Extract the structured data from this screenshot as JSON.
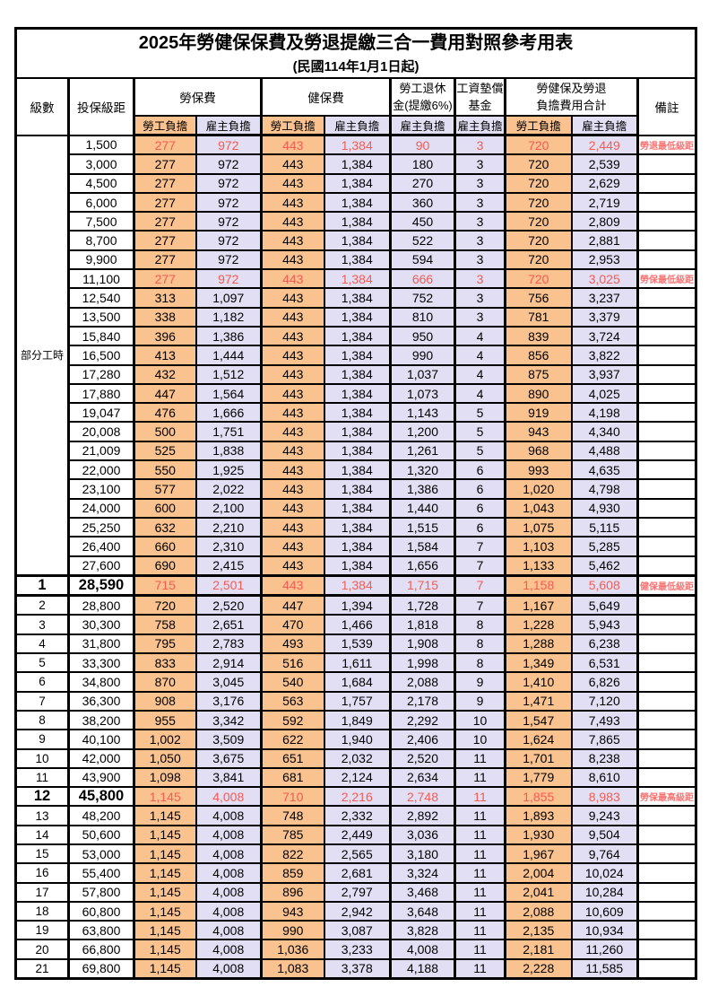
{
  "title": "2025年勞健保保費及勞退提繳三合一費用對照參考用表",
  "subtitle": "(民國114年1月1日起)",
  "header": {
    "level": "級數",
    "bracket": "投保級距",
    "labor_ins": "勞保費",
    "health_ins": "健保費",
    "pension_line1": "勞工退休",
    "pension_line2": "金(提繳6%)",
    "fund_line1": "工資墊償",
    "fund_line2": "基金",
    "total_line1": "勞健保及勞退",
    "total_line2": "負擔費用合計",
    "remark": "備註",
    "worker": "勞工負擔",
    "employer": "雇主負擔"
  },
  "part_time_label": "部分工時",
  "part_time_rowspan": 23,
  "colors": {
    "worker_fill": "#f9c28f",
    "employer_fill": "#e2dff4",
    "highlight_value_text": "#f45b52",
    "remark_text": "#f87474",
    "border": "#000000"
  },
  "rows": [
    {
      "level": "",
      "bracket": "1,500",
      "values": [
        "277",
        "972",
        "443",
        "1,384",
        "90",
        "3",
        "720",
        "2,449"
      ],
      "remark": "勞退最低級距",
      "red": true,
      "big": false,
      "thick": false
    },
    {
      "level": "",
      "bracket": "3,000",
      "values": [
        "277",
        "972",
        "443",
        "1,384",
        "180",
        "3",
        "720",
        "2,539"
      ],
      "remark": "",
      "red": false,
      "big": false,
      "thick": false
    },
    {
      "level": "",
      "bracket": "4,500",
      "values": [
        "277",
        "972",
        "443",
        "1,384",
        "270",
        "3",
        "720",
        "2,629"
      ],
      "remark": "",
      "red": false,
      "big": false,
      "thick": false
    },
    {
      "level": "",
      "bracket": "6,000",
      "values": [
        "277",
        "972",
        "443",
        "1,384",
        "360",
        "3",
        "720",
        "2,719"
      ],
      "remark": "",
      "red": false,
      "big": false,
      "thick": false
    },
    {
      "level": "",
      "bracket": "7,500",
      "values": [
        "277",
        "972",
        "443",
        "1,384",
        "450",
        "3",
        "720",
        "2,809"
      ],
      "remark": "",
      "red": false,
      "big": false,
      "thick": false
    },
    {
      "level": "",
      "bracket": "8,700",
      "values": [
        "277",
        "972",
        "443",
        "1,384",
        "522",
        "3",
        "720",
        "2,881"
      ],
      "remark": "",
      "red": false,
      "big": false,
      "thick": false
    },
    {
      "level": "",
      "bracket": "9,900",
      "values": [
        "277",
        "972",
        "443",
        "1,384",
        "594",
        "3",
        "720",
        "2,953"
      ],
      "remark": "",
      "red": false,
      "big": false,
      "thick": false
    },
    {
      "level": "",
      "bracket": "11,100",
      "values": [
        "277",
        "972",
        "443",
        "1,384",
        "666",
        "3",
        "720",
        "3,025"
      ],
      "remark": "勞保最低級距",
      "red": true,
      "big": false,
      "thick": false
    },
    {
      "level": "",
      "bracket": "12,540",
      "values": [
        "313",
        "1,097",
        "443",
        "1,384",
        "752",
        "3",
        "756",
        "3,237"
      ],
      "remark": "",
      "red": false,
      "big": false,
      "thick": false
    },
    {
      "level": "",
      "bracket": "13,500",
      "values": [
        "338",
        "1,182",
        "443",
        "1,384",
        "810",
        "3",
        "781",
        "3,379"
      ],
      "remark": "",
      "red": false,
      "big": false,
      "thick": false
    },
    {
      "level": "",
      "bracket": "15,840",
      "values": [
        "396",
        "1,386",
        "443",
        "1,384",
        "950",
        "4",
        "839",
        "3,724"
      ],
      "remark": "",
      "red": false,
      "big": false,
      "thick": false
    },
    {
      "level": "",
      "bracket": "16,500",
      "values": [
        "413",
        "1,444",
        "443",
        "1,384",
        "990",
        "4",
        "856",
        "3,822"
      ],
      "remark": "",
      "red": false,
      "big": false,
      "thick": false
    },
    {
      "level": "",
      "bracket": "17,280",
      "values": [
        "432",
        "1,512",
        "443",
        "1,384",
        "1,037",
        "4",
        "875",
        "3,937"
      ],
      "remark": "",
      "red": false,
      "big": false,
      "thick": false
    },
    {
      "level": "",
      "bracket": "17,880",
      "values": [
        "447",
        "1,564",
        "443",
        "1,384",
        "1,073",
        "4",
        "890",
        "4,025"
      ],
      "remark": "",
      "red": false,
      "big": false,
      "thick": false
    },
    {
      "level": "",
      "bracket": "19,047",
      "values": [
        "476",
        "1,666",
        "443",
        "1,384",
        "1,143",
        "5",
        "919",
        "4,198"
      ],
      "remark": "",
      "red": false,
      "big": false,
      "thick": false
    },
    {
      "level": "",
      "bracket": "20,008",
      "values": [
        "500",
        "1,751",
        "443",
        "1,384",
        "1,200",
        "5",
        "943",
        "4,340"
      ],
      "remark": "",
      "red": false,
      "big": false,
      "thick": false
    },
    {
      "level": "",
      "bracket": "21,009",
      "values": [
        "525",
        "1,838",
        "443",
        "1,384",
        "1,261",
        "5",
        "968",
        "4,488"
      ],
      "remark": "",
      "red": false,
      "big": false,
      "thick": false
    },
    {
      "level": "",
      "bracket": "22,000",
      "values": [
        "550",
        "1,925",
        "443",
        "1,384",
        "1,320",
        "6",
        "993",
        "4,635"
      ],
      "remark": "",
      "red": false,
      "big": false,
      "thick": false
    },
    {
      "level": "",
      "bracket": "23,100",
      "values": [
        "577",
        "2,022",
        "443",
        "1,384",
        "1,386",
        "6",
        "1,020",
        "4,798"
      ],
      "remark": "",
      "red": false,
      "big": false,
      "thick": false
    },
    {
      "level": "",
      "bracket": "24,000",
      "values": [
        "600",
        "2,100",
        "443",
        "1,384",
        "1,440",
        "6",
        "1,043",
        "4,930"
      ],
      "remark": "",
      "red": false,
      "big": false,
      "thick": false
    },
    {
      "level": "",
      "bracket": "25,250",
      "values": [
        "632",
        "2,210",
        "443",
        "1,384",
        "1,515",
        "6",
        "1,075",
        "5,115"
      ],
      "remark": "",
      "red": false,
      "big": false,
      "thick": false
    },
    {
      "level": "",
      "bracket": "26,400",
      "values": [
        "660",
        "2,310",
        "443",
        "1,384",
        "1,584",
        "7",
        "1,103",
        "5,285"
      ],
      "remark": "",
      "red": false,
      "big": false,
      "thick": false
    },
    {
      "level": "",
      "bracket": "27,600",
      "values": [
        "690",
        "2,415",
        "443",
        "1,384",
        "1,656",
        "7",
        "1,133",
        "5,462"
      ],
      "remark": "",
      "red": false,
      "big": false,
      "thick": false
    },
    {
      "level": "1",
      "bracket": "28,590",
      "values": [
        "715",
        "2,501",
        "443",
        "1,384",
        "1,715",
        "7",
        "1,158",
        "5,608"
      ],
      "remark": "健保最低級距",
      "red": true,
      "big": true,
      "thick": true
    },
    {
      "level": "2",
      "bracket": "28,800",
      "values": [
        "720",
        "2,520",
        "447",
        "1,394",
        "1,728",
        "7",
        "1,167",
        "5,649"
      ],
      "remark": "",
      "red": false,
      "big": false,
      "thick": false
    },
    {
      "level": "3",
      "bracket": "30,300",
      "values": [
        "758",
        "2,651",
        "470",
        "1,466",
        "1,818",
        "8",
        "1,228",
        "5,943"
      ],
      "remark": "",
      "red": false,
      "big": false,
      "thick": false
    },
    {
      "level": "4",
      "bracket": "31,800",
      "values": [
        "795",
        "2,783",
        "493",
        "1,539",
        "1,908",
        "8",
        "1,288",
        "6,238"
      ],
      "remark": "",
      "red": false,
      "big": false,
      "thick": false
    },
    {
      "level": "5",
      "bracket": "33,300",
      "values": [
        "833",
        "2,914",
        "516",
        "1,611",
        "1,998",
        "8",
        "1,349",
        "6,531"
      ],
      "remark": "",
      "red": false,
      "big": false,
      "thick": false
    },
    {
      "level": "6",
      "bracket": "34,800",
      "values": [
        "870",
        "3,045",
        "540",
        "1,684",
        "2,088",
        "9",
        "1,410",
        "6,826"
      ],
      "remark": "",
      "red": false,
      "big": false,
      "thick": false
    },
    {
      "level": "7",
      "bracket": "36,300",
      "values": [
        "908",
        "3,176",
        "563",
        "1,757",
        "2,178",
        "9",
        "1,471",
        "7,120"
      ],
      "remark": "",
      "red": false,
      "big": false,
      "thick": false
    },
    {
      "level": "8",
      "bracket": "38,200",
      "values": [
        "955",
        "3,342",
        "592",
        "1,849",
        "2,292",
        "10",
        "1,547",
        "7,493"
      ],
      "remark": "",
      "red": false,
      "big": false,
      "thick": false
    },
    {
      "level": "9",
      "bracket": "40,100",
      "values": [
        "1,002",
        "3,509",
        "622",
        "1,940",
        "2,406",
        "10",
        "1,624",
        "7,865"
      ],
      "remark": "",
      "red": false,
      "big": false,
      "thick": false
    },
    {
      "level": "10",
      "bracket": "42,000",
      "values": [
        "1,050",
        "3,675",
        "651",
        "2,032",
        "2,520",
        "11",
        "1,701",
        "8,238"
      ],
      "remark": "",
      "red": false,
      "big": false,
      "thick": false
    },
    {
      "level": "11",
      "bracket": "43,900",
      "values": [
        "1,098",
        "3,841",
        "681",
        "2,124",
        "2,634",
        "11",
        "1,779",
        "8,610"
      ],
      "remark": "",
      "red": false,
      "big": false,
      "thick": false
    },
    {
      "level": "12",
      "bracket": "45,800",
      "values": [
        "1,145",
        "4,008",
        "710",
        "2,216",
        "2,748",
        "11",
        "1,855",
        "8,983"
      ],
      "remark": "勞保最高級距",
      "red": true,
      "big": true,
      "thick": false
    },
    {
      "level": "13",
      "bracket": "48,200",
      "values": [
        "1,145",
        "4,008",
        "748",
        "2,332",
        "2,892",
        "11",
        "1,893",
        "9,243"
      ],
      "remark": "",
      "red": false,
      "big": false,
      "thick": false
    },
    {
      "level": "14",
      "bracket": "50,600",
      "values": [
        "1,145",
        "4,008",
        "785",
        "2,449",
        "3,036",
        "11",
        "1,930",
        "9,504"
      ],
      "remark": "",
      "red": false,
      "big": false,
      "thick": false
    },
    {
      "level": "15",
      "bracket": "53,000",
      "values": [
        "1,145",
        "4,008",
        "822",
        "2,565",
        "3,180",
        "11",
        "1,967",
        "9,764"
      ],
      "remark": "",
      "red": false,
      "big": false,
      "thick": false
    },
    {
      "level": "16",
      "bracket": "55,400",
      "values": [
        "1,145",
        "4,008",
        "859",
        "2,681",
        "3,324",
        "11",
        "2,004",
        "10,024"
      ],
      "remark": "",
      "red": false,
      "big": false,
      "thick": false
    },
    {
      "level": "17",
      "bracket": "57,800",
      "values": [
        "1,145",
        "4,008",
        "896",
        "2,797",
        "3,468",
        "11",
        "2,041",
        "10,284"
      ],
      "remark": "",
      "red": false,
      "big": false,
      "thick": false
    },
    {
      "level": "18",
      "bracket": "60,800",
      "values": [
        "1,145",
        "4,008",
        "943",
        "2,942",
        "3,648",
        "11",
        "2,088",
        "10,609"
      ],
      "remark": "",
      "red": false,
      "big": false,
      "thick": false
    },
    {
      "level": "19",
      "bracket": "63,800",
      "values": [
        "1,145",
        "4,008",
        "990",
        "3,087",
        "3,828",
        "11",
        "2,135",
        "10,934"
      ],
      "remark": "",
      "red": false,
      "big": false,
      "thick": false
    },
    {
      "level": "20",
      "bracket": "66,800",
      "values": [
        "1,145",
        "4,008",
        "1,036",
        "3,233",
        "4,008",
        "11",
        "2,181",
        "11,260"
      ],
      "remark": "",
      "red": false,
      "big": false,
      "thick": false
    },
    {
      "level": "21",
      "bracket": "69,800",
      "values": [
        "1,145",
        "4,008",
        "1,083",
        "3,378",
        "4,188",
        "11",
        "2,228",
        "11,585"
      ],
      "remark": "",
      "red": false,
      "big": false,
      "thick": false
    }
  ]
}
